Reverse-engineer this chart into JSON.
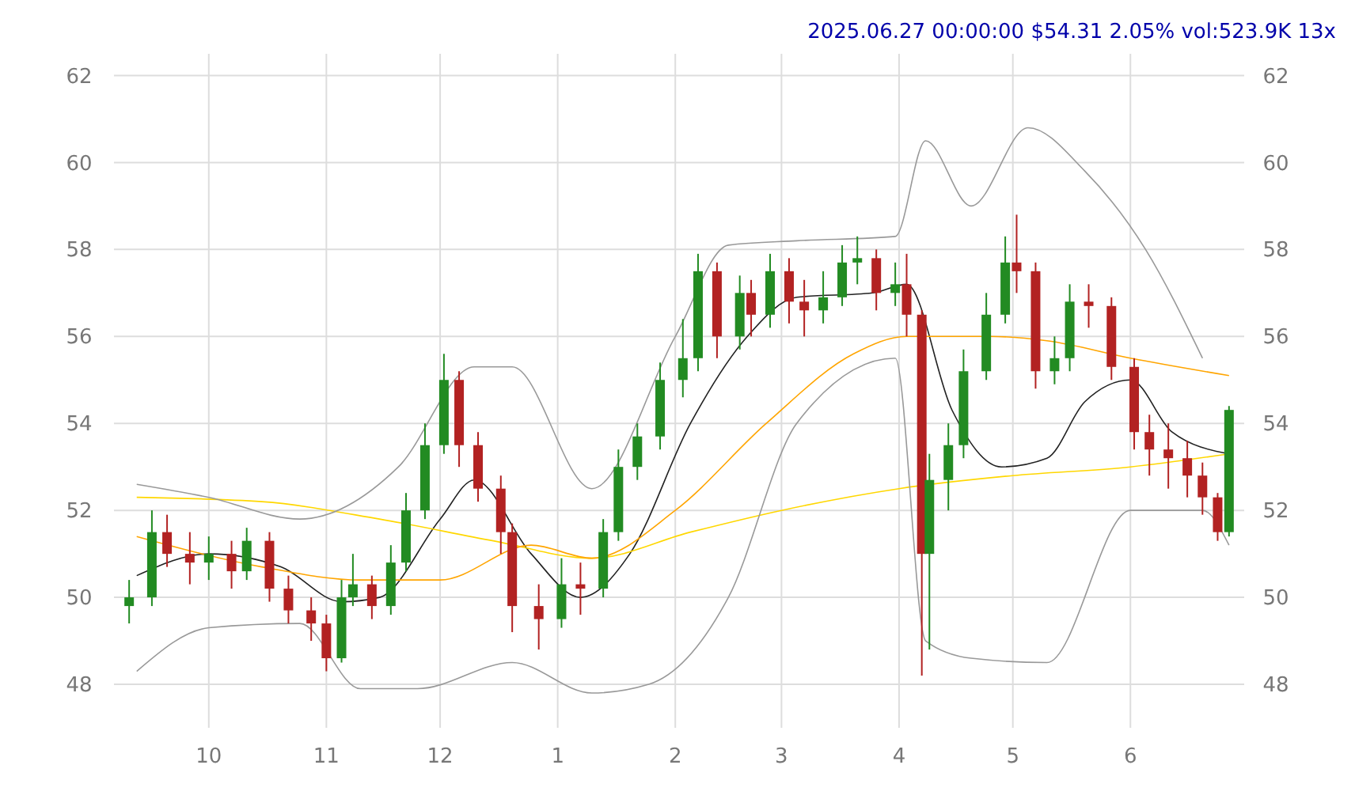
{
  "chart_data": {
    "type": "candlestick",
    "title": "2025.06.27 00:00:00 $54.31 2.05% vol:523.9K 13x",
    "x": [
      "2024-09-10",
      "2024-09-16",
      "2024-09-20",
      "2024-09-26",
      "2024-10-01",
      "2024-10-07",
      "2024-10-11",
      "2024-10-17",
      "2024-10-22",
      "2024-10-28",
      "2024-11-01",
      "2024-11-05",
      "2024-11-08",
      "2024-11-13",
      "2024-11-18",
      "2024-11-22",
      "2024-11-27",
      "2024-12-02",
      "2024-12-06",
      "2024-12-11",
      "2024-12-17",
      "2024-12-20",
      "2024-12-27",
      "2025-01-02",
      "2025-01-07",
      "2025-01-13",
      "2025-01-17",
      "2025-01-22",
      "2025-01-28",
      "2025-02-03",
      "2025-02-07",
      "2025-02-12",
      "2025-02-18",
      "2025-02-21",
      "2025-02-26",
      "2025-03-03",
      "2025-03-07",
      "2025-03-12",
      "2025-03-17",
      "2025-03-21",
      "2025-03-26",
      "2025-03-31",
      "2025-04-03",
      "2025-04-07",
      "2025-04-09",
      "2025-04-14",
      "2025-04-18",
      "2025-04-24",
      "2025-04-29",
      "2025-05-02",
      "2025-05-07",
      "2025-05-12",
      "2025-05-16",
      "2025-05-21",
      "2025-05-27",
      "2025-06-02",
      "2025-06-06",
      "2025-06-11",
      "2025-06-16",
      "2025-06-20",
      "2025-06-24",
      "2025-06-27"
    ],
    "ohlc": [
      [
        49.8,
        50.4,
        49.4,
        50.0
      ],
      [
        50.0,
        52.0,
        49.8,
        51.5
      ],
      [
        51.5,
        51.9,
        50.7,
        51.0
      ],
      [
        51.0,
        51.5,
        50.3,
        50.8
      ],
      [
        50.8,
        51.4,
        50.4,
        51.0
      ],
      [
        51.0,
        51.3,
        50.2,
        50.6
      ],
      [
        50.6,
        51.6,
        50.4,
        51.3
      ],
      [
        51.3,
        51.5,
        49.9,
        50.2
      ],
      [
        50.2,
        50.5,
        49.4,
        49.7
      ],
      [
        49.7,
        50.0,
        49.0,
        49.4
      ],
      [
        49.4,
        49.6,
        48.3,
        48.6
      ],
      [
        48.6,
        50.4,
        48.5,
        50.0
      ],
      [
        50.0,
        51.0,
        49.8,
        50.3
      ],
      [
        50.3,
        50.5,
        49.5,
        49.8
      ],
      [
        49.8,
        51.2,
        49.6,
        50.8
      ],
      [
        50.8,
        52.4,
        50.6,
        52.0
      ],
      [
        52.0,
        54.0,
        51.8,
        53.5
      ],
      [
        53.5,
        55.6,
        53.3,
        55.0
      ],
      [
        55.0,
        55.2,
        53.0,
        53.5
      ],
      [
        53.5,
        53.8,
        52.2,
        52.5
      ],
      [
        52.5,
        52.8,
        51.0,
        51.5
      ],
      [
        51.5,
        51.7,
        49.2,
        49.8
      ],
      [
        49.8,
        50.3,
        48.8,
        49.5
      ],
      [
        49.5,
        50.9,
        49.3,
        50.3
      ],
      [
        50.3,
        50.8,
        49.6,
        50.2
      ],
      [
        50.2,
        51.8,
        50.0,
        51.5
      ],
      [
        51.5,
        53.4,
        51.3,
        53.0
      ],
      [
        53.0,
        54.0,
        52.7,
        53.7
      ],
      [
        53.7,
        55.4,
        53.4,
        55.0
      ],
      [
        55.0,
        56.4,
        54.6,
        55.5
      ],
      [
        55.5,
        57.9,
        55.2,
        57.5
      ],
      [
        57.5,
        57.7,
        55.5,
        56.0
      ],
      [
        56.0,
        57.4,
        55.7,
        57.0
      ],
      [
        57.0,
        57.3,
        56.0,
        56.5
      ],
      [
        56.5,
        57.9,
        56.2,
        57.5
      ],
      [
        57.5,
        57.8,
        56.3,
        56.8
      ],
      [
        56.8,
        57.3,
        56.0,
        56.6
      ],
      [
        56.6,
        57.5,
        56.3,
        56.9
      ],
      [
        56.9,
        58.1,
        56.7,
        57.7
      ],
      [
        57.7,
        58.3,
        57.2,
        57.8
      ],
      [
        57.8,
        58.0,
        56.6,
        57.0
      ],
      [
        57.0,
        57.7,
        56.7,
        57.2
      ],
      [
        57.2,
        57.9,
        56.0,
        56.5
      ],
      [
        56.5,
        56.6,
        48.2,
        51.0
      ],
      [
        51.0,
        53.3,
        48.8,
        52.7
      ],
      [
        52.7,
        54.0,
        52.0,
        53.5
      ],
      [
        53.5,
        55.7,
        53.2,
        55.2
      ],
      [
        55.2,
        57.0,
        55.0,
        56.5
      ],
      [
        56.5,
        58.3,
        56.3,
        57.7
      ],
      [
        57.7,
        58.8,
        57.0,
        57.5
      ],
      [
        57.5,
        57.7,
        54.8,
        55.2
      ],
      [
        55.2,
        56.0,
        54.9,
        55.5
      ],
      [
        55.5,
        57.2,
        55.2,
        56.8
      ],
      [
        56.8,
        57.2,
        56.2,
        56.7
      ],
      [
        56.7,
        56.9,
        55.0,
        55.3
      ],
      [
        55.3,
        55.5,
        53.4,
        53.8
      ],
      [
        53.8,
        54.2,
        52.8,
        53.4
      ],
      [
        53.4,
        54.0,
        52.5,
        53.2
      ],
      [
        53.2,
        53.6,
        52.3,
        52.8
      ],
      [
        52.8,
        53.1,
        51.9,
        52.3
      ],
      [
        52.3,
        52.4,
        51.3,
        51.5
      ],
      [
        51.5,
        54.4,
        51.4,
        54.31
      ]
    ],
    "series": [
      {
        "type": "line",
        "color": "#222222",
        "x": [
          "2024-09-12",
          "2024-10-01",
          "2024-10-20",
          "2024-11-05",
          "2024-11-15",
          "2024-12-01",
          "2024-12-10",
          "2024-12-25",
          "2025-01-07",
          "2025-01-20",
          "2025-02-05",
          "2025-02-20",
          "2025-03-05",
          "2025-03-25",
          "2025-04-03",
          "2025-04-15",
          "2025-04-28",
          "2025-05-10",
          "2025-05-20",
          "2025-06-01",
          "2025-06-12",
          "2025-06-27"
        ],
        "values": [
          50.5,
          51.0,
          50.7,
          49.9,
          50.0,
          51.8,
          52.7,
          51.0,
          50.0,
          51.0,
          54.0,
          56.0,
          56.9,
          57.0,
          57.2,
          54.3,
          53.0,
          53.2,
          54.5,
          55.0,
          53.8,
          53.3
        ]
      },
      {
        "type": "line",
        "color": "#ffd700",
        "x": [
          "2024-09-12",
          "2024-10-15",
          "2024-11-15",
          "2024-12-15",
          "2025-01-10",
          "2025-02-05",
          "2025-03-01",
          "2025-04-01",
          "2025-05-01",
          "2025-06-01",
          "2025-06-27"
        ],
        "values": [
          52.3,
          52.2,
          51.8,
          51.3,
          50.9,
          51.5,
          52.0,
          52.5,
          52.8,
          53.0,
          53.3
        ]
      },
      {
        "type": "line",
        "color": "#ffa500",
        "x": [
          "2024-09-12",
          "2024-10-15",
          "2024-11-10",
          "2024-12-01",
          "2024-12-25",
          "2025-01-10",
          "2025-02-01",
          "2025-02-25",
          "2025-03-20",
          "2025-04-03",
          "2025-04-25",
          "2025-05-10",
          "2025-06-01",
          "2025-06-27"
        ],
        "values": [
          51.4,
          50.7,
          50.4,
          50.4,
          51.2,
          50.9,
          52.0,
          54.0,
          55.6,
          56.0,
          56.0,
          55.9,
          55.5,
          55.1
        ]
      },
      {
        "type": "line",
        "color": "#999999",
        "x": [
          "2024-09-12",
          "2024-10-01",
          "2024-10-25",
          "2024-11-20",
          "2024-12-10",
          "2024-12-20",
          "2025-01-10",
          "2025-02-01",
          "2025-02-15",
          "2025-03-05",
          "2025-03-31",
          "2025-04-08",
          "2025-04-20",
          "2025-05-05",
          "2025-05-20",
          "2025-06-05",
          "2025-06-20"
        ],
        "values": [
          52.6,
          52.3,
          51.8,
          53.0,
          55.3,
          55.3,
          52.5,
          56.0,
          58.1,
          58.2,
          58.3,
          60.5,
          59.0,
          60.8,
          59.8,
          58.0,
          55.5
        ]
      },
      {
        "type": "line",
        "color": "#999999",
        "x": [
          "2024-09-12",
          "2024-10-01",
          "2024-10-25",
          "2024-11-10",
          "2024-11-25",
          "2024-12-20",
          "2025-01-10",
          "2025-01-25",
          "2025-02-15",
          "2025-03-05",
          "2025-03-31",
          "2025-04-08",
          "2025-04-20",
          "2025-05-10",
          "2025-06-01",
          "2025-06-20",
          "2025-06-27"
        ],
        "values": [
          48.3,
          49.3,
          49.4,
          47.9,
          47.9,
          48.5,
          47.8,
          48.0,
          50.0,
          54.0,
          55.5,
          49.0,
          48.6,
          48.5,
          52.0,
          52.0,
          51.2
        ]
      }
    ],
    "colors": [
      "#228b22",
      "#228b22",
      "#b22222",
      "#b22222",
      "#228b22",
      "#b22222",
      "#228b22",
      "#b22222",
      "#b22222",
      "#b22222",
      "#b22222",
      "#228b22",
      "#228b22",
      "#b22222",
      "#228b22",
      "#228b22",
      "#228b22",
      "#228b22",
      "#b22222",
      "#b22222",
      "#b22222",
      "#b22222",
      "#b22222",
      "#228b22",
      "#b22222",
      "#228b22",
      "#228b22",
      "#228b22",
      "#228b22",
      "#228b22",
      "#228b22",
      "#b22222",
      "#228b22",
      "#b22222",
      "#228b22",
      "#b22222",
      "#b22222",
      "#228b22",
      "#228b22",
      "#228b22",
      "#b22222",
      "#228b22",
      "#b22222",
      "#b22222",
      "#228b22",
      "#228b22",
      "#228b22",
      "#228b22",
      "#228b22",
      "#b22222",
      "#b22222",
      "#228b22",
      "#228b22",
      "#b22222",
      "#b22222",
      "#b22222",
      "#b22222",
      "#b22222",
      "#b22222",
      "#b22222",
      "#b22222",
      "#228b22"
    ],
    "xlim": [
      "2024-09-06",
      "2025-07-01"
    ],
    "xticks": [
      {
        "value": "2024-10-01",
        "label": "10"
      },
      {
        "value": "2024-11-01",
        "label": "11"
      },
      {
        "value": "2024-12-01",
        "label": "12"
      },
      {
        "value": "2025-01-01",
        "label": "1"
      },
      {
        "value": "2025-02-01",
        "label": "2"
      },
      {
        "value": "2025-03-01",
        "label": "3"
      },
      {
        "value": "2025-04-01",
        "label": "4"
      },
      {
        "value": "2025-05-01",
        "label": "5"
      },
      {
        "value": "2025-06-01",
        "label": "6"
      }
    ],
    "ylim": [
      47,
      62.5
    ],
    "yticks": [
      48,
      50,
      52,
      54,
      56,
      58,
      60,
      62
    ],
    "y2lim": [
      47,
      62.5
    ],
    "y2ticks": [
      48,
      50,
      52,
      54,
      56,
      58,
      60,
      62
    ],
    "grid": true
  }
}
